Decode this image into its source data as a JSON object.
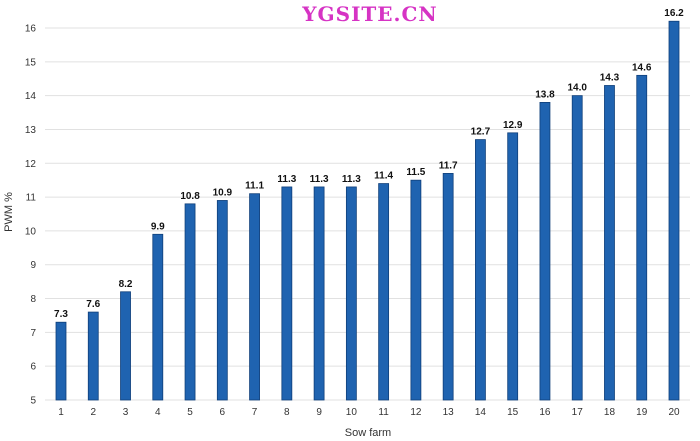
{
  "watermark": "YGSITE.CN",
  "chart_data": {
    "type": "bar",
    "xlabel": "Sow farm",
    "ylabel": "PWM %",
    "ylim": [
      5,
      16.5
    ],
    "yticks": [
      5,
      6,
      7,
      8,
      9,
      10,
      11,
      12,
      13,
      14,
      15,
      16
    ],
    "grid": true,
    "categories": [
      "1",
      "2",
      "3",
      "4",
      "5",
      "6",
      "7",
      "8",
      "9",
      "10",
      "11",
      "12",
      "13",
      "14",
      "15",
      "16",
      "17",
      "18",
      "19",
      "20"
    ],
    "values": [
      7.3,
      7.6,
      8.2,
      9.9,
      10.8,
      10.9,
      11.1,
      11.3,
      11.3,
      11.3,
      11.4,
      11.5,
      11.7,
      12.7,
      12.9,
      13.8,
      14.0,
      14.3,
      14.6,
      16.2
    ],
    "data_labels": [
      "7.3",
      "7.6",
      "8.2",
      "9.9",
      "10.8",
      "10.9",
      "11.1",
      "11.3",
      "11.3",
      "11.3",
      "11.4",
      "11.5",
      "11.7",
      "12.7",
      "12.9",
      "13.8",
      "14.0",
      "14.3",
      "14.6",
      "16.2"
    ],
    "colors": {
      "bar": "#1f63b0",
      "bar_edge": "#0f3f7a"
    }
  }
}
